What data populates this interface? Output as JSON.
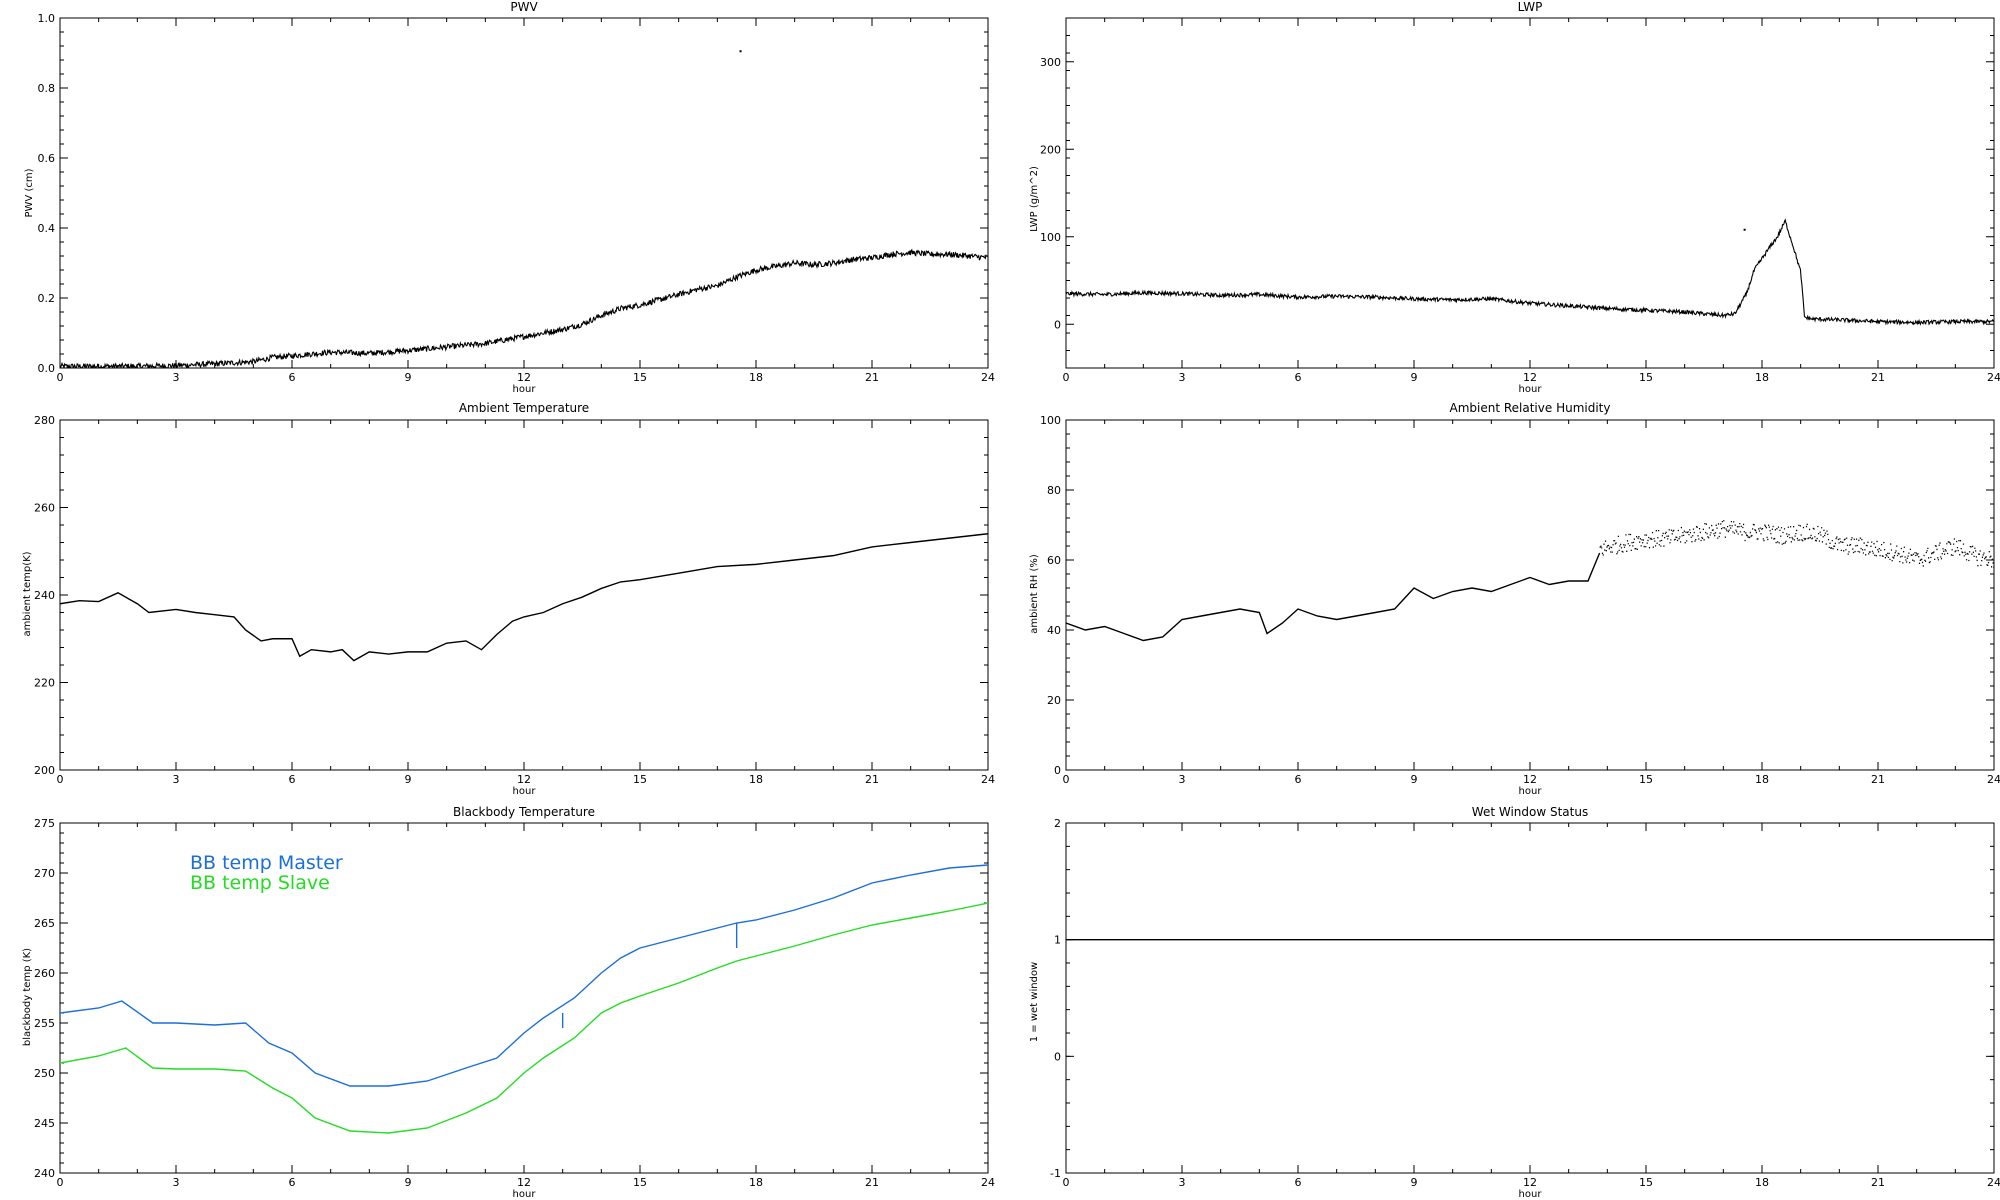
{
  "chart_data": [
    {
      "type": "line",
      "title": "PWV",
      "xlabel": "hour",
      "ylabel": "PWV (cm)",
      "xlim": [
        0,
        24
      ],
      "ylim": [
        0,
        1.0
      ],
      "xticks": [
        "0",
        "3",
        "6",
        "9",
        "12",
        "15",
        "18",
        "21",
        "24"
      ],
      "yticks": [
        "0.0",
        "0.2",
        "0.4",
        "0.6",
        "0.8",
        "1.0"
      ],
      "series": [
        {
          "color": "#000000",
          "style": "noisy",
          "noise": 0.008,
          "x": [
            0,
            1,
            2,
            3,
            4,
            5,
            5.5,
            6,
            7,
            8,
            9,
            10,
            11,
            11.5,
            12,
            12.5,
            13,
            13.5,
            14,
            14.5,
            15,
            15.5,
            16,
            16.5,
            17,
            17.5,
            18,
            18.5,
            19,
            19.5,
            20,
            20.5,
            21,
            21.5,
            22,
            22.5,
            23,
            23.5,
            24
          ],
          "y": [
            0.005,
            0.005,
            0.005,
            0.007,
            0.012,
            0.018,
            0.03,
            0.035,
            0.045,
            0.042,
            0.05,
            0.06,
            0.07,
            0.08,
            0.09,
            0.1,
            0.11,
            0.125,
            0.15,
            0.17,
            0.18,
            0.195,
            0.21,
            0.225,
            0.235,
            0.26,
            0.28,
            0.29,
            0.3,
            0.295,
            0.3,
            0.31,
            0.315,
            0.325,
            0.33,
            0.325,
            0.325,
            0.32,
            0.315
          ]
        }
      ],
      "points": [
        {
          "x": 17.6,
          "y": 0.905
        }
      ]
    },
    {
      "type": "line",
      "title": "LWP",
      "xlabel": "hour",
      "ylabel": "LWP (g/m^2)",
      "xlim": [
        0,
        24
      ],
      "ylim": [
        -50,
        350
      ],
      "xticks": [
        "0",
        "3",
        "6",
        "9",
        "12",
        "15",
        "18",
        "21",
        "24"
      ],
      "yticks": [
        "0",
        "100",
        "200",
        "300"
      ],
      "ytick_values": [
        0,
        100,
        200,
        300
      ],
      "series": [
        {
          "color": "#000000",
          "style": "noisy",
          "noise": 2.2,
          "x": [
            0,
            1,
            2,
            3,
            4,
            5,
            6,
            7,
            8,
            9,
            10,
            11,
            12,
            13,
            14,
            15,
            16,
            17,
            17.3,
            17.6,
            17.8,
            18,
            18.2,
            18.4,
            18.6,
            18.8,
            19,
            19.1,
            19.3,
            20,
            21,
            22,
            23,
            24
          ],
          "y": [
            35,
            34,
            36,
            35,
            33,
            34,
            31,
            32,
            31,
            29,
            28,
            29,
            24,
            21,
            18,
            16,
            14,
            10,
            12,
            35,
            62,
            75,
            88,
            100,
            118,
            90,
            60,
            8,
            6,
            5,
            3,
            2,
            3,
            3
          ]
        }
      ],
      "points": [
        {
          "x": 17.55,
          "y": 108
        }
      ]
    },
    {
      "type": "line",
      "title": "Ambient Temperature",
      "xlabel": "hour",
      "ylabel": "ambient temp(K)",
      "xlim": [
        0,
        24
      ],
      "ylim": [
        200,
        280
      ],
      "xticks": [
        "0",
        "3",
        "6",
        "9",
        "12",
        "15",
        "18",
        "21",
        "24"
      ],
      "yticks": [
        "200",
        "220",
        "240",
        "260",
        "280"
      ],
      "ytick_values": [
        200,
        220,
        240,
        260,
        280
      ],
      "series": [
        {
          "color": "#000000",
          "style": "plain",
          "x": [
            0,
            0.5,
            1,
            1.5,
            2,
            2.3,
            3,
            3.5,
            4,
            4.5,
            4.8,
            5.2,
            5.5,
            6,
            6.2,
            6.5,
            7,
            7.3,
            7.6,
            8,
            8.5,
            9,
            9.5,
            10,
            10.5,
            10.9,
            11.3,
            11.7,
            12,
            12.5,
            13,
            13.5,
            14,
            14.5,
            15,
            16,
            17,
            18,
            19,
            20,
            21,
            22,
            23,
            24
          ],
          "y": [
            238,
            238.7,
            238.5,
            240.5,
            238,
            236,
            236.7,
            236,
            235.5,
            235,
            232,
            229.5,
            230,
            230,
            226,
            227.5,
            227,
            227.5,
            225,
            227,
            226.5,
            227,
            227,
            229,
            229.5,
            227.5,
            231,
            234,
            235,
            236,
            238,
            239.5,
            241.5,
            243,
            243.5,
            245,
            246.5,
            247,
            248,
            249,
            251,
            252,
            253,
            254
          ]
        }
      ]
    },
    {
      "type": "line",
      "title": "Ambient Relative Humidity",
      "xlabel": "hour",
      "ylabel": "ambient RH (%)",
      "xlim": [
        0,
        24
      ],
      "ylim": [
        0,
        100
      ],
      "xticks": [
        "0",
        "3",
        "6",
        "9",
        "12",
        "15",
        "18",
        "21",
        "24"
      ],
      "yticks": [
        "0",
        "20",
        "40",
        "60",
        "80",
        "100"
      ],
      "ytick_values": [
        0,
        20,
        40,
        60,
        80,
        100
      ],
      "series": [
        {
          "color": "#000000",
          "style": "plain",
          "x": [
            0,
            0.5,
            1,
            1.5,
            2,
            2.5,
            3,
            3.5,
            4,
            4.5,
            5,
            5.2,
            5.6,
            6,
            6.5,
            7,
            7.5,
            8,
            8.5,
            9,
            9.5,
            10,
            10.5,
            11,
            11.5,
            12,
            12.5,
            13,
            13.5,
            13.8
          ],
          "y": [
            42,
            40,
            41,
            39,
            37,
            38,
            43,
            44,
            45,
            46,
            45,
            39,
            42,
            46,
            44,
            43,
            44,
            45,
            46,
            52,
            49,
            51,
            52,
            51,
            53,
            55,
            53,
            54,
            54,
            62
          ]
        },
        {
          "color": "#000000",
          "style": "dots",
          "noise": 2.5,
          "x": [
            13.8,
            14.5,
            15,
            15.5,
            16,
            16.5,
            17,
            17.5,
            18,
            18.5,
            19,
            19.5,
            20,
            20.5,
            21,
            21.5,
            22,
            22.5,
            23,
            23.5,
            24
          ],
          "y": [
            63,
            65,
            66,
            66,
            67,
            68,
            69,
            68,
            68,
            67,
            68,
            67,
            64,
            64,
            63,
            62,
            60,
            62,
            64,
            61,
            60
          ]
        }
      ]
    },
    {
      "type": "line",
      "title": "Blackbody Temperature",
      "xlabel": "hour",
      "ylabel": "blackbody temp (K)",
      "xlim": [
        0,
        24
      ],
      "ylim": [
        240,
        275
      ],
      "xticks": [
        "0",
        "3",
        "6",
        "9",
        "12",
        "15",
        "18",
        "21",
        "24"
      ],
      "yticks": [
        "240",
        "245",
        "250",
        "255",
        "260",
        "265",
        "270",
        "275"
      ],
      "ytick_values": [
        240,
        245,
        250,
        255,
        260,
        265,
        270,
        275
      ],
      "legend": [
        "BB temp Master",
        "BB temp Slave"
      ],
      "series": [
        {
          "name": "BB temp Master",
          "color": "#1a6fdb",
          "style": "plain",
          "x": [
            0,
            1,
            1.6,
            2.4,
            3,
            4,
            4.8,
            5.4,
            6,
            6.6,
            7.5,
            8.5,
            9.5,
            10.5,
            11.3,
            12,
            12.5,
            13.3,
            14,
            14.5,
            15,
            16,
            17,
            17.5,
            18,
            19,
            20,
            21,
            22,
            23,
            24
          ],
          "y": [
            256,
            256.5,
            257.2,
            255,
            255,
            254.8,
            255,
            253,
            252,
            250,
            248.7,
            248.7,
            249.2,
            250.5,
            251.5,
            254,
            255.5,
            257.5,
            260,
            261.5,
            262.5,
            263.5,
            264.5,
            265,
            265.3,
            266.3,
            267.5,
            269,
            269.8,
            270.5,
            270.8
          ]
        },
        {
          "name": "BB temp Slave",
          "color": "#22dd22",
          "style": "plain",
          "x": [
            0,
            1,
            1.7,
            2.4,
            3,
            4,
            4.8,
            5.5,
            6,
            6.6,
            7.5,
            8.5,
            9.5,
            10.5,
            11.3,
            12,
            12.5,
            13.3,
            14,
            14.5,
            15,
            16,
            17,
            17.5,
            18,
            19,
            20,
            21,
            22,
            23,
            24
          ],
          "y": [
            251,
            251.7,
            252.5,
            250.5,
            250.4,
            250.4,
            250.2,
            248.5,
            247.5,
            245.5,
            244.2,
            244,
            244.5,
            246,
            247.5,
            250,
            251.5,
            253.5,
            256,
            257,
            257.7,
            259,
            260.5,
            261.2,
            261.7,
            262.7,
            263.8,
            264.8,
            265.5,
            266.2,
            267
          ]
        }
      ],
      "spikes": [
        {
          "x": 13,
          "y1": 256,
          "y2": 254.5,
          "color": "#1a6fdb"
        },
        {
          "x": 17.5,
          "y1": 265,
          "y2": 262.5,
          "color": "#1a6fdb"
        }
      ]
    },
    {
      "type": "line",
      "title": "Wet Window Status",
      "xlabel": "hour",
      "ylabel": "1 = wet window",
      "xlim": [
        0,
        24
      ],
      "ylim": [
        -1,
        2
      ],
      "xticks": [
        "0",
        "3",
        "6",
        "9",
        "12",
        "15",
        "18",
        "21",
        "24"
      ],
      "yticks": [
        "-1",
        "0",
        "1",
        "2"
      ],
      "ytick_values": [
        -1,
        0,
        1,
        2
      ],
      "series": [
        {
          "color": "#000000",
          "style": "plain",
          "x": [
            0,
            24
          ],
          "y": [
            1,
            1
          ]
        }
      ]
    }
  ]
}
